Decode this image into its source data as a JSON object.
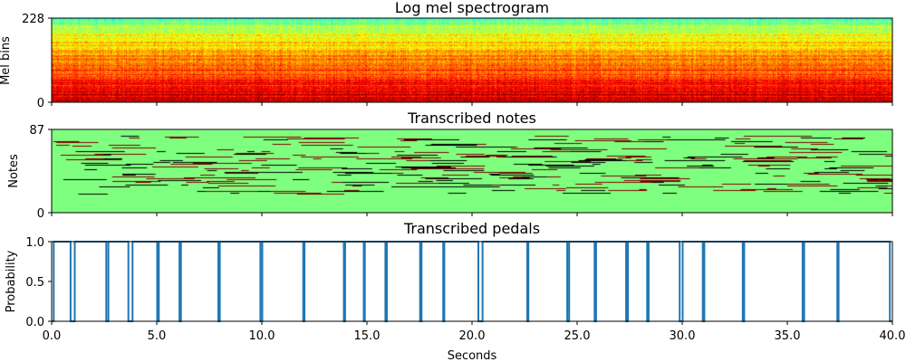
{
  "chart_data": [
    {
      "type": "heatmap",
      "title": "Log mel spectrogram",
      "ylabel": "Mel bins",
      "ylim": [
        0,
        228
      ],
      "yticks": [
        "0",
        "228"
      ],
      "xlim": [
        0,
        40
      ],
      "colormap": "jet"
    },
    {
      "type": "heatmap",
      "title": "Transcribed notes",
      "ylabel": "Notes",
      "ylim": [
        0,
        87
      ],
      "yticks": [
        "0",
        "87"
      ],
      "xlim": [
        0,
        40
      ],
      "colormap": "jet",
      "background_color": "#7fff7f",
      "note_color": "#7f0000"
    },
    {
      "type": "line",
      "title": "Transcribed pedals",
      "ylabel": "Probability",
      "xlabel": "Seconds",
      "xlim": [
        0,
        40
      ],
      "ylim": [
        0,
        1
      ],
      "xticks": [
        "0.0",
        "5.0",
        "10.0",
        "15.0",
        "20.0",
        "25.0",
        "30.0",
        "35.0",
        "40.0"
      ],
      "yticks": [
        "0.0",
        "0.5",
        "1.0"
      ],
      "color": "#1f77b4",
      "pedal_off_intervals": [
        [
          0.0,
          0.1
        ],
        [
          0.9,
          1.1
        ],
        [
          2.6,
          2.7
        ],
        [
          3.65,
          3.85
        ],
        [
          5.02,
          5.1
        ],
        [
          6.08,
          6.15
        ],
        [
          7.93,
          8.0
        ],
        [
          9.93,
          10.02
        ],
        [
          11.97,
          12.03
        ],
        [
          13.9,
          13.96
        ],
        [
          14.85,
          14.9
        ],
        [
          15.88,
          15.95
        ],
        [
          17.53,
          17.6
        ],
        [
          18.63,
          18.68
        ],
        [
          20.3,
          20.5
        ],
        [
          22.63,
          22.68
        ],
        [
          24.53,
          24.62
        ],
        [
          25.83,
          25.9
        ],
        [
          27.33,
          27.42
        ],
        [
          28.33,
          28.4
        ],
        [
          29.88,
          30.02
        ],
        [
          30.98,
          31.05
        ],
        [
          32.88,
          32.95
        ],
        [
          35.73,
          35.8
        ],
        [
          37.38,
          37.44
        ],
        [
          39.88,
          40.0
        ]
      ]
    }
  ]
}
